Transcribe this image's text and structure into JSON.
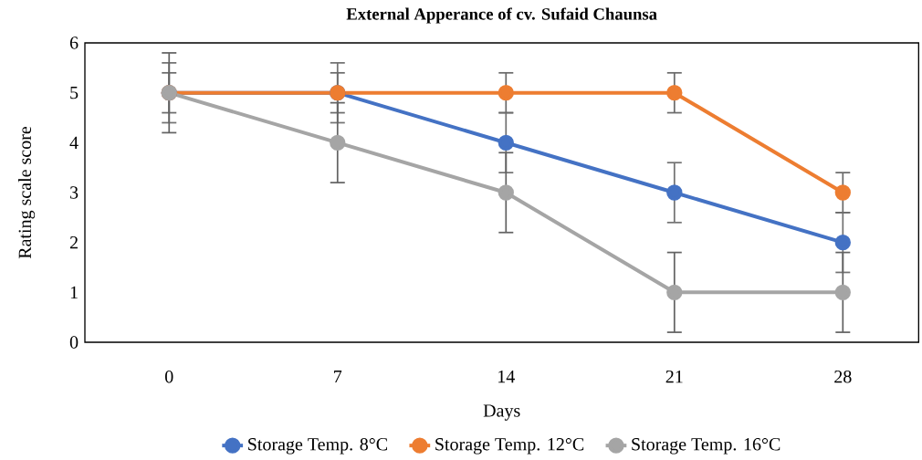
{
  "chart_data": {
    "type": "line",
    "title": "External Apperance of cv. Sufaid Chaunsa",
    "xlabel": "Days",
    "ylabel": "Rating scale score",
    "categories": [
      "0",
      "7",
      "14",
      "21",
      "28"
    ],
    "series": [
      {
        "name": "Storage Temp. 8°C",
        "color": "#4472c4",
        "values": [
          5,
          5,
          4,
          3,
          2
        ],
        "errors": [
          0.6,
          0.6,
          0.6,
          0.6,
          0.6
        ]
      },
      {
        "name": "Storage Temp. 12°C",
        "color": "#ed7d31",
        "values": [
          5,
          5,
          5,
          5,
          3
        ],
        "errors": [
          0.4,
          0.4,
          0.4,
          0.4,
          0.4
        ]
      },
      {
        "name": "Storage Temp. 16°C",
        "color": "#a5a5a5",
        "values": [
          5,
          4,
          3,
          1,
          1
        ],
        "errors": [
          0.8,
          0.8,
          0.8,
          0.8,
          0.8
        ]
      }
    ],
    "ylim": [
      0,
      6
    ],
    "yticks": [
      0,
      1,
      2,
      3,
      4,
      5,
      6
    ],
    "grid": false,
    "legend": "bottom",
    "marker": "circle",
    "line_style": "solid"
  }
}
